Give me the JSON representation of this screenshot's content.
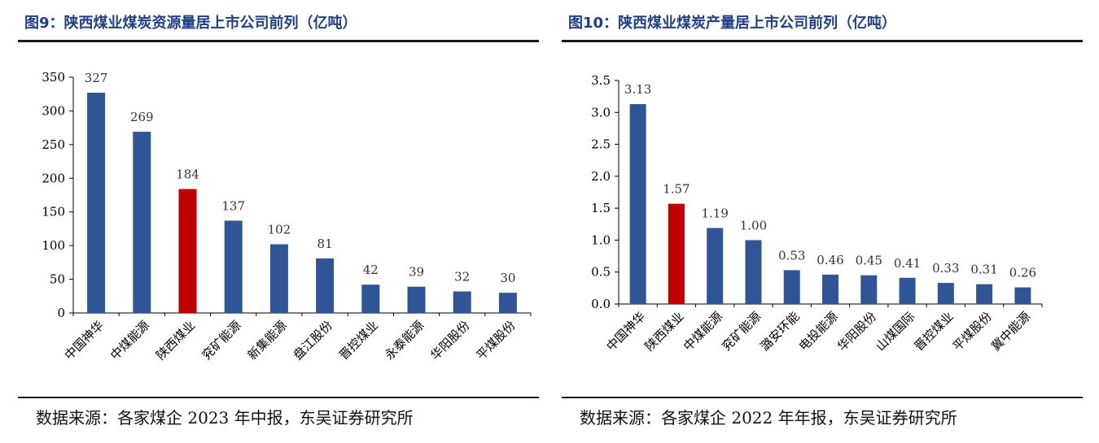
{
  "panels": [
    {
      "title": "图9：陕西煤业煤炭资源量居上市公司前列（亿吨）",
      "source": "数据来源：各家煤企 2023 年中报，东吴证券研究所"
    },
    {
      "title": "图10：陕西煤业煤炭产量居上市公司前列（亿吨）",
      "source": "数据来源：各家煤企 2022 年年报，东吴证券研究所"
    }
  ],
  "colors": {
    "bar": "#2f5597",
    "highlight": "#c00000",
    "axis": "#000000",
    "label": "#333333"
  },
  "chart_data": [
    {
      "type": "bar",
      "title": "图9：陕西煤业煤炭资源量居上市公司前列（亿吨）",
      "categories": [
        "中国神华",
        "中煤能源",
        "陕西煤业",
        "兖矿能源",
        "新集能源",
        "盘江股份",
        "晋控煤业",
        "永泰能源",
        "华阳股份",
        "平煤股份"
      ],
      "values": [
        327,
        269,
        184,
        137,
        102,
        81,
        42,
        39,
        32,
        30
      ],
      "value_labels": [
        "327",
        "269",
        "184",
        "137",
        "102",
        "81",
        "42",
        "39",
        "32",
        "30"
      ],
      "highlight_index": 2,
      "ylim": [
        0,
        350
      ],
      "yticks": [
        0,
        50,
        100,
        150,
        200,
        250,
        300,
        350
      ],
      "ytick_labels": [
        "0",
        "50",
        "100",
        "150",
        "200",
        "250",
        "300",
        "350"
      ],
      "grid": false,
      "xlabel": "",
      "ylabel": ""
    },
    {
      "type": "bar",
      "title": "图10：陕西煤业煤炭产量居上市公司前列（亿吨）",
      "categories": [
        "中国神华",
        "陕西煤业",
        "中煤能源",
        "兖矿能源",
        "潞安环能",
        "电投能源",
        "华阳股份",
        "山煤国际",
        "晋控煤业",
        "平煤股份",
        "冀中能源"
      ],
      "values": [
        3.13,
        1.57,
        1.19,
        1.0,
        0.53,
        0.46,
        0.45,
        0.41,
        0.33,
        0.31,
        0.26
      ],
      "value_labels": [
        "3.13",
        "1.57",
        "1.19",
        "1.00",
        "0.53",
        "0.46",
        "0.45",
        "0.41",
        "0.33",
        "0.31",
        "0.26"
      ],
      "highlight_index": 1,
      "ylim": [
        0,
        3.5
      ],
      "yticks": [
        0,
        0.5,
        1.0,
        1.5,
        2.0,
        2.5,
        3.0,
        3.5
      ],
      "ytick_labels": [
        "0.0",
        "0.5",
        "1.0",
        "1.5",
        "2.0",
        "2.5",
        "3.0",
        "3.5"
      ],
      "grid": false,
      "xlabel": "",
      "ylabel": ""
    }
  ]
}
